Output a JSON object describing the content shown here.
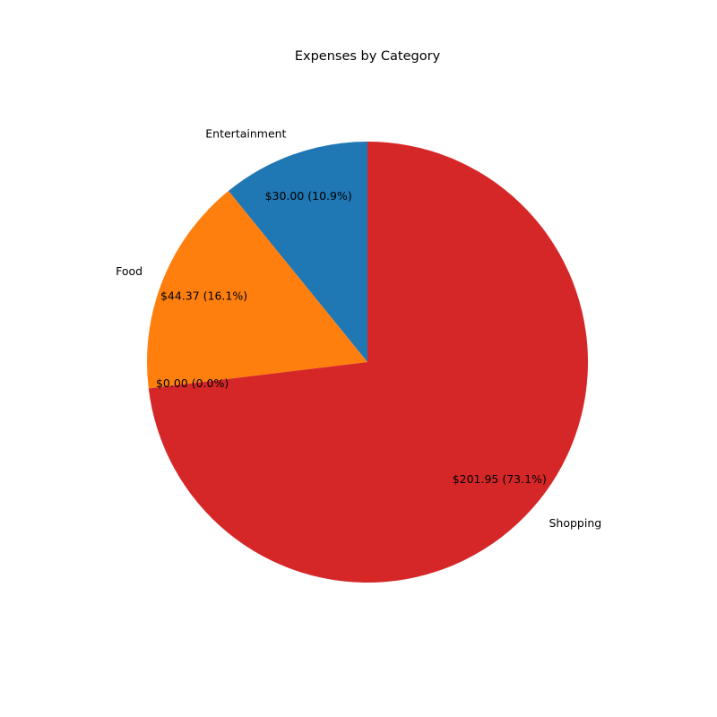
{
  "chart_data": {
    "type": "pie",
    "title": "Expenses by Category",
    "start_angle_deg": 90,
    "direction": "counterclockwise",
    "slices": [
      {
        "name": "Entertainment",
        "value": 30.0,
        "percent": 10.9,
        "label": "Entertainment",
        "value_label": "$30.00 (10.9%)",
        "color": "#1f77b4"
      },
      {
        "name": "Food",
        "value": 44.37,
        "percent": 16.1,
        "label": "Food",
        "value_label": "$44.37 (16.1%)",
        "color": "#ff7f0e"
      },
      {
        "name": "",
        "value": 0.0,
        "percent": 0.0,
        "label": "",
        "value_label": "$0.00 (0.0%)",
        "color": "#2ca02c"
      },
      {
        "name": "Shopping",
        "value": 201.95,
        "percent": 73.1,
        "label": "Shopping",
        "value_label": "$201.95 (73.1%)",
        "color": "#d62728"
      }
    ]
  }
}
